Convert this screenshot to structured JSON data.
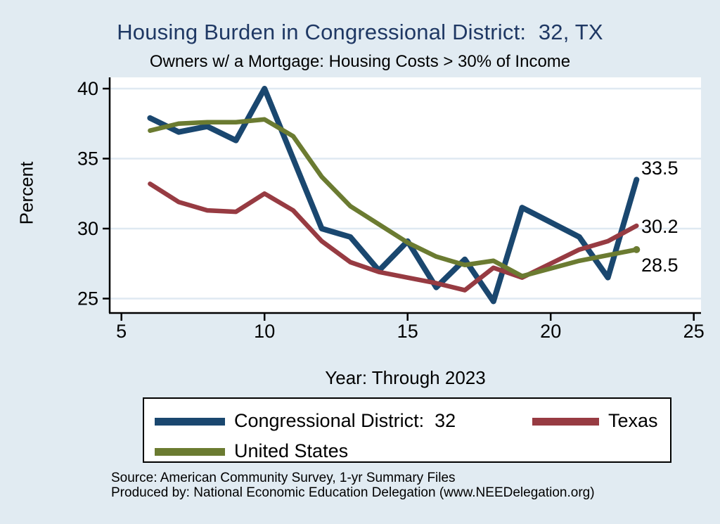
{
  "page": {
    "title": "Housing Burden in Congressional District:  32, TX",
    "subtitle": "Owners w/ a Mortgage: Housing Costs > 30% of Income",
    "source_line1": "Source: American Community Survey, 1-yr Summary Files",
    "source_line2": "Produced by: National Economic Education Delegation (www.NEEDelegation.org)"
  },
  "colors": {
    "background": "#e1ebf2",
    "plot_background": "#ffffff",
    "grid": "#dfe9f2",
    "axis": "#000000",
    "title": "#1f3864",
    "cd32": "#1a476f",
    "texas": "#973b42",
    "us": "#6b7b31"
  },
  "chart_data": {
    "type": "line",
    "title": "Housing Burden in Congressional District:  32, TX",
    "subtitle": "Owners w/ a Mortgage: Housing Costs > 30% of Income",
    "xlabel": "Year: Through 2023",
    "ylabel": "Percent",
    "xlim": [
      4.6,
      25.65
    ],
    "ylim": [
      23.9,
      40.8
    ],
    "x_ticks": [
      5,
      10,
      15,
      20,
      25
    ],
    "y_ticks": [
      25,
      30,
      35,
      40
    ],
    "grid": true,
    "legend_position": "bottom",
    "note": "x axis is survey year (2006-2023, 2020 missing); lines connect 2019 directly to 2021",
    "x": [
      6,
      7,
      8,
      9,
      10,
      11,
      12,
      13,
      14,
      15,
      16,
      17,
      18,
      19,
      21,
      22,
      23
    ],
    "series": [
      {
        "id": "cd32",
        "name": "Congressional District:  32",
        "color": "#1a476f",
        "line_width": 8,
        "end_label": "33.5",
        "end_marker": false,
        "values": [
          37.9,
          36.9,
          37.3,
          36.3,
          40.0,
          35.0,
          30.0,
          29.4,
          27.0,
          29.1,
          25.8,
          27.8,
          24.8,
          31.5,
          29.4,
          26.5,
          33.5
        ]
      },
      {
        "id": "texas",
        "name": "Texas",
        "color": "#973b42",
        "line_width": 6.5,
        "end_label": "30.2",
        "end_marker": false,
        "values": [
          33.2,
          31.9,
          31.3,
          31.2,
          32.5,
          31.3,
          29.1,
          27.6,
          26.9,
          26.5,
          26.1,
          25.6,
          27.2,
          26.5,
          28.5,
          29.1,
          30.2
        ]
      },
      {
        "id": "us",
        "name": "United States",
        "color": "#6b7b31",
        "line_width": 6.5,
        "end_label": "28.5",
        "end_marker": true,
        "values": [
          37.0,
          37.5,
          37.6,
          37.6,
          37.8,
          36.6,
          33.7,
          31.6,
          30.3,
          29.0,
          28.0,
          27.4,
          27.7,
          26.6,
          27.7,
          28.1,
          28.5
        ]
      }
    ]
  },
  "legend": {
    "items": [
      {
        "id": "cd32",
        "label": "Congressional District:  32",
        "color": "#1a476f"
      },
      {
        "id": "texas",
        "label": "Texas",
        "color": "#973b42"
      },
      {
        "id": "us",
        "label": "United States",
        "color": "#6b7b31"
      }
    ]
  }
}
